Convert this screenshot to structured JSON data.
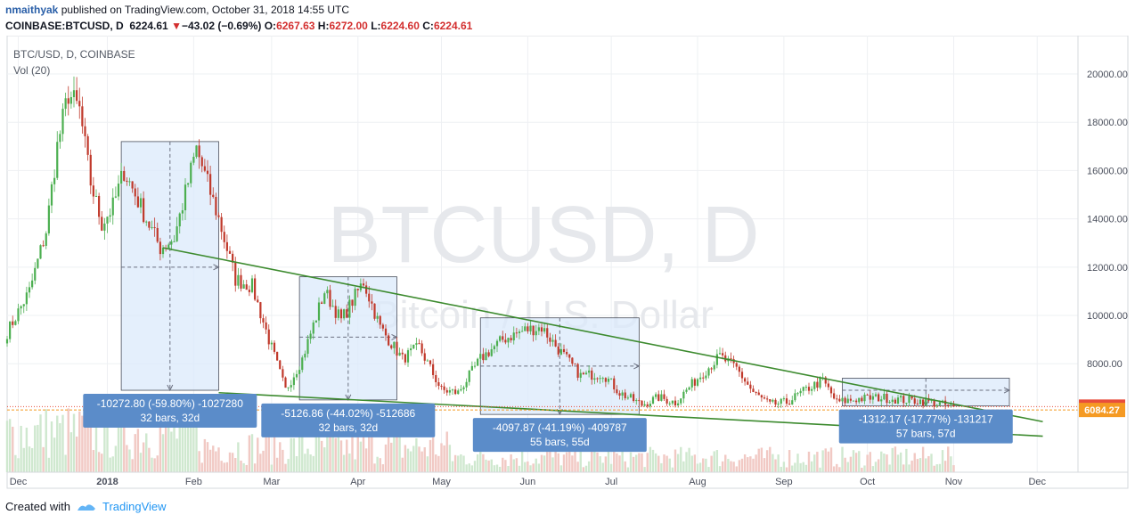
{
  "header": {
    "author": "nmaithyak",
    "published_text": "published on TradingView.com, October 31, 2018 14:55 UTC",
    "symbol": "COINBASE:BTCUSD, D",
    "last": "6224.61",
    "change_arrow": "▼",
    "change": "−43.02 (−0.69%)",
    "o_label": "O:",
    "o": "6267.63",
    "h_label": "H:",
    "h": "6272.00",
    "l_label": "L:",
    "l": "6224.60",
    "c_label": "C:",
    "c": "6224.61"
  },
  "pane": {
    "title": "BTC/USD, D, COINBASE",
    "indicator": "Vol (20)",
    "watermark_main": "BTCUSD, D",
    "watermark_sub": "Bitcoin / U.S. Dollar"
  },
  "footer": {
    "created_with": "Created with",
    "brand": "TradingView"
  },
  "colors": {
    "up": "#4caf50",
    "down": "#c0392b",
    "trendline": "#3d8b2f",
    "measure_fill": "#dbe9fb",
    "measure_label": "#5b8cc9",
    "price_label": "#e84e3c",
    "support_label": "#f59a23",
    "grid": "#eef0f3"
  },
  "chart_data": {
    "type": "candlestick",
    "y_axis_ticks": [
      "20000.00",
      "18000.00",
      "16000.00",
      "14000.00",
      "12000.00",
      "10000.00",
      "8000.00"
    ],
    "x_axis_ticks": [
      "Dec",
      "2018",
      "Feb",
      "Mar",
      "Apr",
      "May",
      "Jun",
      "Jul",
      "Aug",
      "Sep",
      "Oct",
      "Nov",
      "Dec"
    ],
    "ylim": [
      4900,
      21200
    ],
    "price_labels": [
      {
        "text": "6224.61",
        "value": 6224.61,
        "kind": "last"
      },
      {
        "text": "6084.27",
        "value": 6084.27,
        "kind": "support"
      }
    ],
    "anchors": [
      {
        "t": 0,
        "p": 9300
      },
      {
        "t": 8,
        "p": 11000
      },
      {
        "t": 14,
        "p": 13500
      },
      {
        "t": 18,
        "p": 17000
      },
      {
        "t": 22,
        "p": 19200
      },
      {
        "t": 26,
        "p": 18500
      },
      {
        "t": 30,
        "p": 15500
      },
      {
        "t": 34,
        "p": 13800
      },
      {
        "t": 38,
        "p": 14500
      },
      {
        "t": 42,
        "p": 16000
      },
      {
        "t": 46,
        "p": 15000
      },
      {
        "t": 50,
        "p": 14000
      },
      {
        "t": 55,
        "p": 12800
      },
      {
        "t": 60,
        "p": 13200
      },
      {
        "t": 68,
        "p": 16900
      },
      {
        "t": 76,
        "p": 14000
      },
      {
        "t": 82,
        "p": 11500
      },
      {
        "t": 88,
        "p": 11200
      },
      {
        "t": 94,
        "p": 9000
      },
      {
        "t": 100,
        "p": 6900
      },
      {
        "t": 106,
        "p": 8200
      },
      {
        "t": 114,
        "p": 11000
      },
      {
        "t": 120,
        "p": 9800
      },
      {
        "t": 128,
        "p": 11400
      },
      {
        "t": 134,
        "p": 9500
      },
      {
        "t": 142,
        "p": 8200
      },
      {
        "t": 148,
        "p": 8700
      },
      {
        "t": 156,
        "p": 6900
      },
      {
        "t": 162,
        "p": 6800
      },
      {
        "t": 170,
        "p": 8200
      },
      {
        "t": 178,
        "p": 9000
      },
      {
        "t": 186,
        "p": 9400
      },
      {
        "t": 192,
        "p": 9500
      },
      {
        "t": 198,
        "p": 8600
      },
      {
        "t": 206,
        "p": 7500
      },
      {
        "t": 214,
        "p": 7600
      },
      {
        "t": 220,
        "p": 6800
      },
      {
        "t": 228,
        "p": 6300
      },
      {
        "t": 234,
        "p": 6600
      },
      {
        "t": 240,
        "p": 6400
      },
      {
        "t": 248,
        "p": 7400
      },
      {
        "t": 256,
        "p": 8300
      },
      {
        "t": 262,
        "p": 7800
      },
      {
        "t": 268,
        "p": 6800
      },
      {
        "t": 274,
        "p": 6300
      },
      {
        "t": 280,
        "p": 6400
      },
      {
        "t": 288,
        "p": 7000
      },
      {
        "t": 293,
        "p": 7300
      },
      {
        "t": 298,
        "p": 6400
      },
      {
        "t": 306,
        "p": 6550
      },
      {
        "t": 314,
        "p": 6600
      },
      {
        "t": 322,
        "p": 6500
      },
      {
        "t": 330,
        "p": 6450
      },
      {
        "t": 336,
        "p": 6300
      },
      {
        "t": 340,
        "p": 6225
      }
    ],
    "trendlines": [
      {
        "name": "upper-trendline",
        "t1": 56,
        "p1": 12800,
        "t2": 372,
        "p2": 5600
      },
      {
        "name": "lower-trendline",
        "t1": 76,
        "p1": 6800,
        "t2": 372,
        "p2": 5000
      }
    ],
    "measurements": [
      {
        "t1": 41,
        "t2": 76,
        "p_top": 17200,
        "p_bot": 6900,
        "arrow_p": 12000,
        "line1": "-10272.80 (-59.80%) -1027280",
        "line2": "32 bars, 32d"
      },
      {
        "t1": 105,
        "t2": 140,
        "p_top": 11600,
        "p_bot": 6500,
        "arrow_p": 9100,
        "line1": "-5126.86 (-44.02%) -512686",
        "line2": "32 bars, 32d"
      },
      {
        "t1": 170,
        "t2": 227,
        "p_top": 9900,
        "p_bot": 5900,
        "arrow_p": 7900,
        "line1": "-4097.87 (-41.19%) -409787",
        "line2": "55 bars, 55d"
      },
      {
        "t1": 300,
        "t2": 360,
        "p_top": 7400,
        "p_bot": 6250,
        "arrow_p": 6900,
        "line1": "-1312.17 (-17.77%) -131217",
        "line2": "57 bars, 57d"
      }
    ]
  }
}
